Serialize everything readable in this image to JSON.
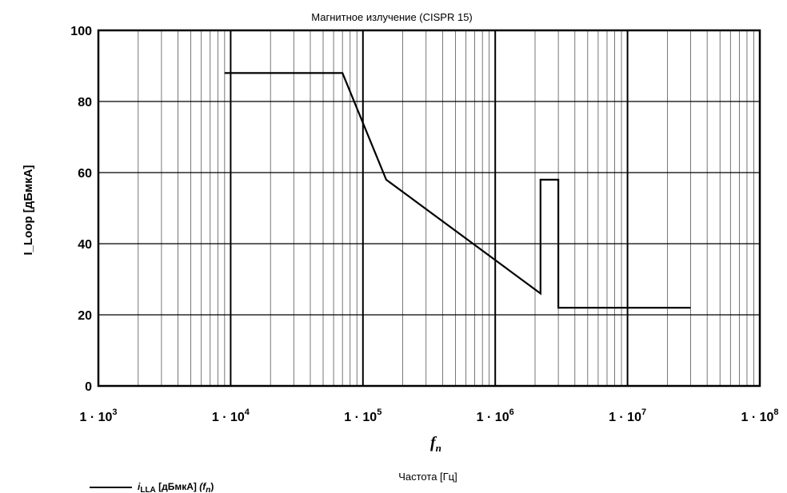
{
  "chart_data": {
    "type": "line",
    "title": "Магнитное излучение (CISPR 15)",
    "ylabel": "I_Loop [дБмкА]",
    "xlabel_symbol": "f",
    "xlabel_symbol_sub": "n",
    "xlabel": "Частота [Гц]",
    "xscale": "log",
    "xlim": [
      1000,
      100000000
    ],
    "ylim": [
      0,
      100
    ],
    "yticks": [
      0,
      20,
      40,
      60,
      80,
      100
    ],
    "xtick_labels": [
      {
        "base": "1 · 10",
        "exp": "3"
      },
      {
        "base": "1 · 10",
        "exp": "4"
      },
      {
        "base": "1 · 10",
        "exp": "5"
      },
      {
        "base": "1 · 10",
        "exp": "6"
      },
      {
        "base": "1 · 10",
        "exp": "7"
      },
      {
        "base": "1 · 10",
        "exp": "8"
      }
    ],
    "grid": true,
    "legend_position": "bottom-left",
    "series": [
      {
        "name": "i_LLA [дБмкА] (f_n)",
        "color": "#000000",
        "x": [
          9000,
          70000,
          150000,
          2200000,
          2200000,
          3000000,
          3000000,
          30000000
        ],
        "y": [
          88,
          88,
          58,
          26,
          58,
          58,
          22,
          22
        ]
      }
    ]
  },
  "legend": {
    "symbol": "i",
    "symbol_sub": "LLA",
    "unit": " [дБмкА] ",
    "arg": "(f",
    "arg_sub": "n",
    "close": ")"
  }
}
